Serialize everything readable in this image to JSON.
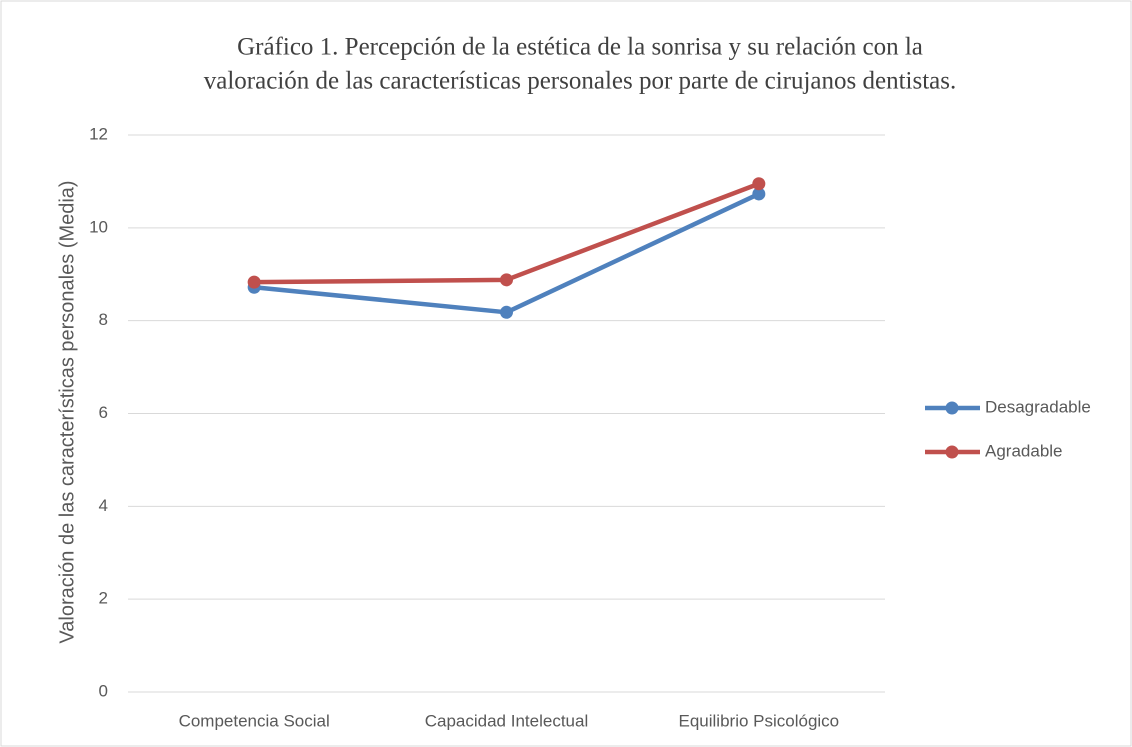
{
  "chart_data": {
    "type": "line",
    "title": [
      "Gráfico 1. Percepción de la estética de la sonrisa y su relación con la",
      "valoración de las características personales por parte de cirujanos dentistas."
    ],
    "y_label": "Valoración de las características personales (Media)",
    "categories": [
      "Competencia Social",
      "Capacidad Intelectual",
      "Equilibrio Psicológico"
    ],
    "series": [
      {
        "name": "Desagradable",
        "color": "#4f81bd",
        "values": [
          8.72,
          8.18,
          10.73
        ]
      },
      {
        "name": "Agradable",
        "color": "#c0504d",
        "values": [
          8.83,
          8.88,
          10.95
        ]
      }
    ],
    "ylim": [
      0,
      12
    ],
    "yticks": [
      0,
      2,
      4,
      6,
      8,
      10,
      12
    ],
    "grid": true,
    "legend": "right"
  }
}
